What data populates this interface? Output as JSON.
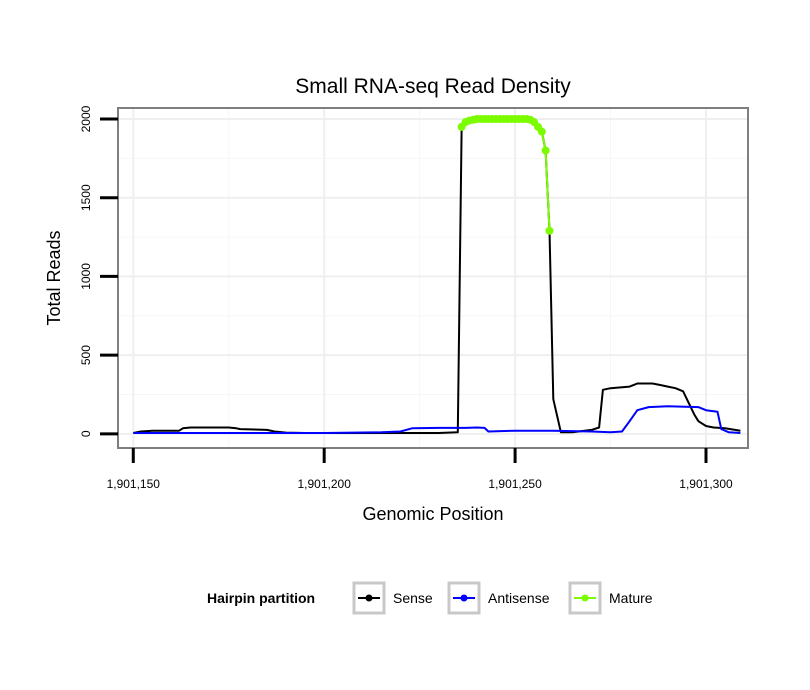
{
  "chart_data": {
    "type": "line",
    "title": "Small RNA-seq Read Density",
    "xlabel": "Genomic Position",
    "ylabel": "Total Reads",
    "xlim": [
      1901146,
      1901311
    ],
    "ylim": [
      -90,
      2070
    ],
    "x_ticks": [
      1901150,
      1901200,
      1901250,
      1901300
    ],
    "x_tick_labels": [
      "1,901,150",
      "1,901,200",
      "1,901,250",
      "1,901,300"
    ],
    "y_ticks": [
      0,
      500,
      1000,
      1500,
      2000
    ],
    "y_tick_labels": [
      "0",
      "500",
      "1000",
      "1500",
      "2000"
    ],
    "grid": true,
    "legend": {
      "title": "Hairpin partition",
      "position": "bottom",
      "entries": [
        "Sense",
        "Antisense",
        "Mature"
      ]
    },
    "series": [
      {
        "name": "Sense",
        "color": "#000000",
        "marker": false,
        "x": [
          1901150,
          1901152,
          1901155,
          1901162,
          1901163,
          1901165,
          1901175,
          1901177,
          1901178,
          1901185,
          1901187,
          1901190,
          1901195,
          1901200,
          1901210,
          1901220,
          1901230,
          1901235,
          1901236,
          1901237,
          1901238,
          1901240,
          1901245,
          1901250,
          1901255,
          1901256,
          1901257,
          1901258,
          1901259,
          1901260,
          1901262,
          1901265,
          1901270,
          1901272,
          1901273,
          1901275,
          1901280,
          1901282,
          1901284,
          1901286,
          1901288,
          1901290,
          1901292,
          1901294,
          1901297,
          1901298,
          1901300,
          1901302,
          1901305,
          1901309
        ],
        "y": [
          5,
          15,
          20,
          20,
          35,
          40,
          40,
          35,
          30,
          25,
          15,
          8,
          5,
          5,
          5,
          5,
          5,
          10,
          1930,
          1980,
          1990,
          2000,
          2000,
          2000,
          1990,
          1960,
          1920,
          1800,
          1290,
          220,
          10,
          10,
          25,
          40,
          280,
          290,
          300,
          320,
          320,
          320,
          310,
          300,
          290,
          270,
          120,
          80,
          50,
          40,
          35,
          20
        ]
      },
      {
        "name": "Antisense",
        "color": "#0000ff",
        "marker": false,
        "x": [
          1901150,
          1901170,
          1901180,
          1901200,
          1901215,
          1901220,
          1901223,
          1901230,
          1901237,
          1901240,
          1901242,
          1901243,
          1901250,
          1901255,
          1901260,
          1901270,
          1901275,
          1901278,
          1901280,
          1901282,
          1901285,
          1901290,
          1901298,
          1901300,
          1901303,
          1901304,
          1901306,
          1901309
        ],
        "y": [
          5,
          5,
          5,
          5,
          10,
          15,
          35,
          38,
          38,
          40,
          38,
          15,
          20,
          20,
          20,
          15,
          10,
          15,
          80,
          150,
          170,
          175,
          170,
          150,
          140,
          30,
          10,
          5
        ]
      },
      {
        "name": "Mature",
        "color": "#7cfc00",
        "marker": true,
        "x": [
          1901236,
          1901237,
          1901238,
          1901239,
          1901240,
          1901241,
          1901242,
          1901243,
          1901244,
          1901245,
          1901246,
          1901247,
          1901248,
          1901249,
          1901250,
          1901251,
          1901252,
          1901253,
          1901254,
          1901255,
          1901256,
          1901257,
          1901258,
          1901259
        ],
        "y": [
          1950,
          1980,
          1990,
          1995,
          2000,
          2000,
          2000,
          2000,
          2000,
          2000,
          2000,
          2000,
          2000,
          2000,
          2000,
          2000,
          2000,
          2000,
          1995,
          1980,
          1950,
          1920,
          1800,
          1290
        ]
      }
    ]
  }
}
